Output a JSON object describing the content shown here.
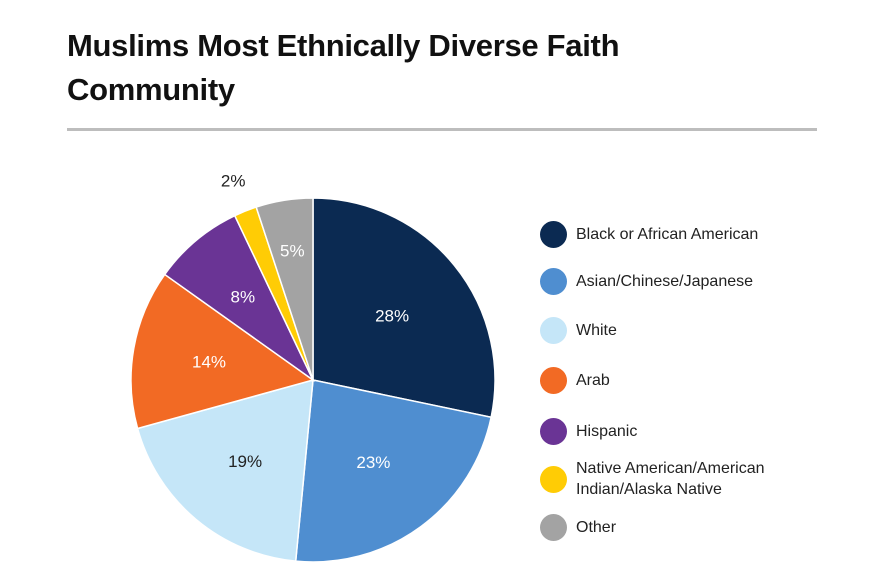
{
  "title_line1": "Muslims Most Ethnically Diverse Faith",
  "title_line2": "Community",
  "chart_data": {
    "type": "pie",
    "title": "Muslims Most Ethnically Diverse Faith Community",
    "unit": "%",
    "slices": [
      {
        "label": "Black or African American",
        "value": 28,
        "display": "28%",
        "color": "#0b2a52",
        "text_color": "#ffffff"
      },
      {
        "label": "Asian/Chinese/Japanese",
        "value": 23,
        "display": "23%",
        "color": "#4f8ed0",
        "text_color": "#ffffff"
      },
      {
        "label": "White",
        "value": 19,
        "display": "19%",
        "color": "#c5e6f8",
        "text_color": "#222222"
      },
      {
        "label": "Arab",
        "value": 14,
        "display": "14%",
        "color": "#f26a24",
        "text_color": "#ffffff"
      },
      {
        "label": "Hispanic",
        "value": 8,
        "display": "8%",
        "color": "#6a3495",
        "text_color": "#ffffff"
      },
      {
        "label": "Native American/American Indian/Alaska Native",
        "value": 2,
        "display": "2%",
        "color": "#ffcc05",
        "text_color": "#222222"
      },
      {
        "label": "Other",
        "value": 5,
        "display": "5%",
        "color": "#a3a3a3",
        "text_color": "#ffffff"
      }
    ],
    "legend": {
      "placement": "right",
      "items": [
        {
          "lines": [
            "Black or African American"
          ],
          "color": "#0b2a52"
        },
        {
          "lines": [
            "Asian/Chinese/Japanese"
          ],
          "color": "#4f8ed0"
        },
        {
          "lines": [
            "White"
          ],
          "color": "#c5e6f8"
        },
        {
          "lines": [
            "Arab"
          ],
          "color": "#f26a24"
        },
        {
          "lines": [
            "Hispanic"
          ],
          "color": "#6a3495"
        },
        {
          "lines": [
            "Native American/American",
            "Indian/Alaska Native"
          ],
          "color": "#ffcc05"
        },
        {
          "lines": [
            "Other"
          ],
          "color": "#a3a3a3"
        }
      ]
    }
  }
}
